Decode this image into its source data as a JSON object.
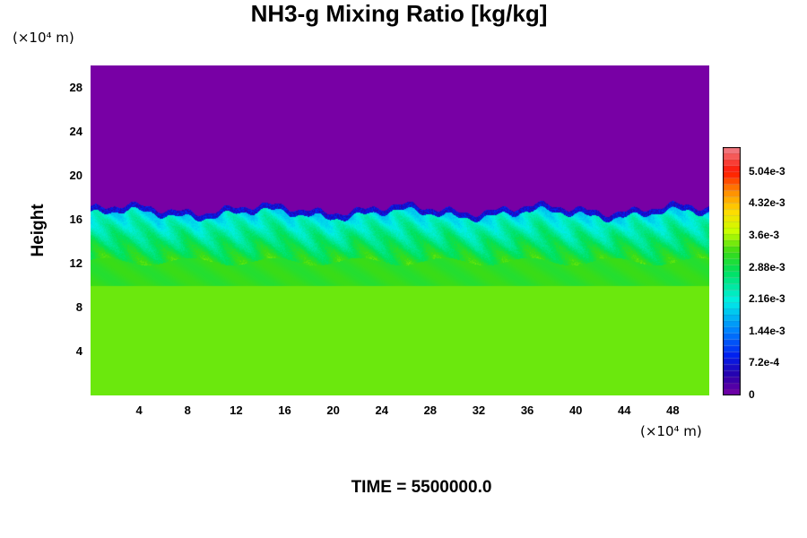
{
  "chart_data": {
    "type": "heatmap",
    "title": "NH3-g Mixing Ratio [kg/kg]",
    "ylabel": "Height",
    "x_unit": "(×10⁴ m)",
    "y_unit": "(×10⁴ m)",
    "xlim": [
      0,
      51
    ],
    "ylim": [
      0,
      30
    ],
    "x_ticks": [
      "4",
      "8",
      "12",
      "16",
      "20",
      "24",
      "28",
      "32",
      "36",
      "40",
      "44",
      "48"
    ],
    "y_ticks": [
      "4",
      "8",
      "12",
      "16",
      "20",
      "24",
      "28"
    ],
    "colorbar": {
      "range": [
        0,
        0.0056
      ],
      "tick_labels": [
        "0",
        "7.2e-4",
        "1.44e-3",
        "2.16e-3",
        "2.88e-3",
        "3.6e-3",
        "4.32e-3",
        "5.04e-3"
      ],
      "tick_values": [
        0,
        0.00072,
        0.00144,
        0.00216,
        0.00288,
        0.0036,
        0.00432,
        0.00504
      ]
    },
    "field": {
      "lower_layer_value": 0.0034,
      "lower_layer_top_height": 10,
      "mixed_layer_value_range": [
        0.0018,
        0.0031
      ],
      "mixed_layer_top_height": 16.5,
      "upper_layer_value": 0
    }
  },
  "footer": {
    "time_label": "TIME = 5500000.0"
  }
}
